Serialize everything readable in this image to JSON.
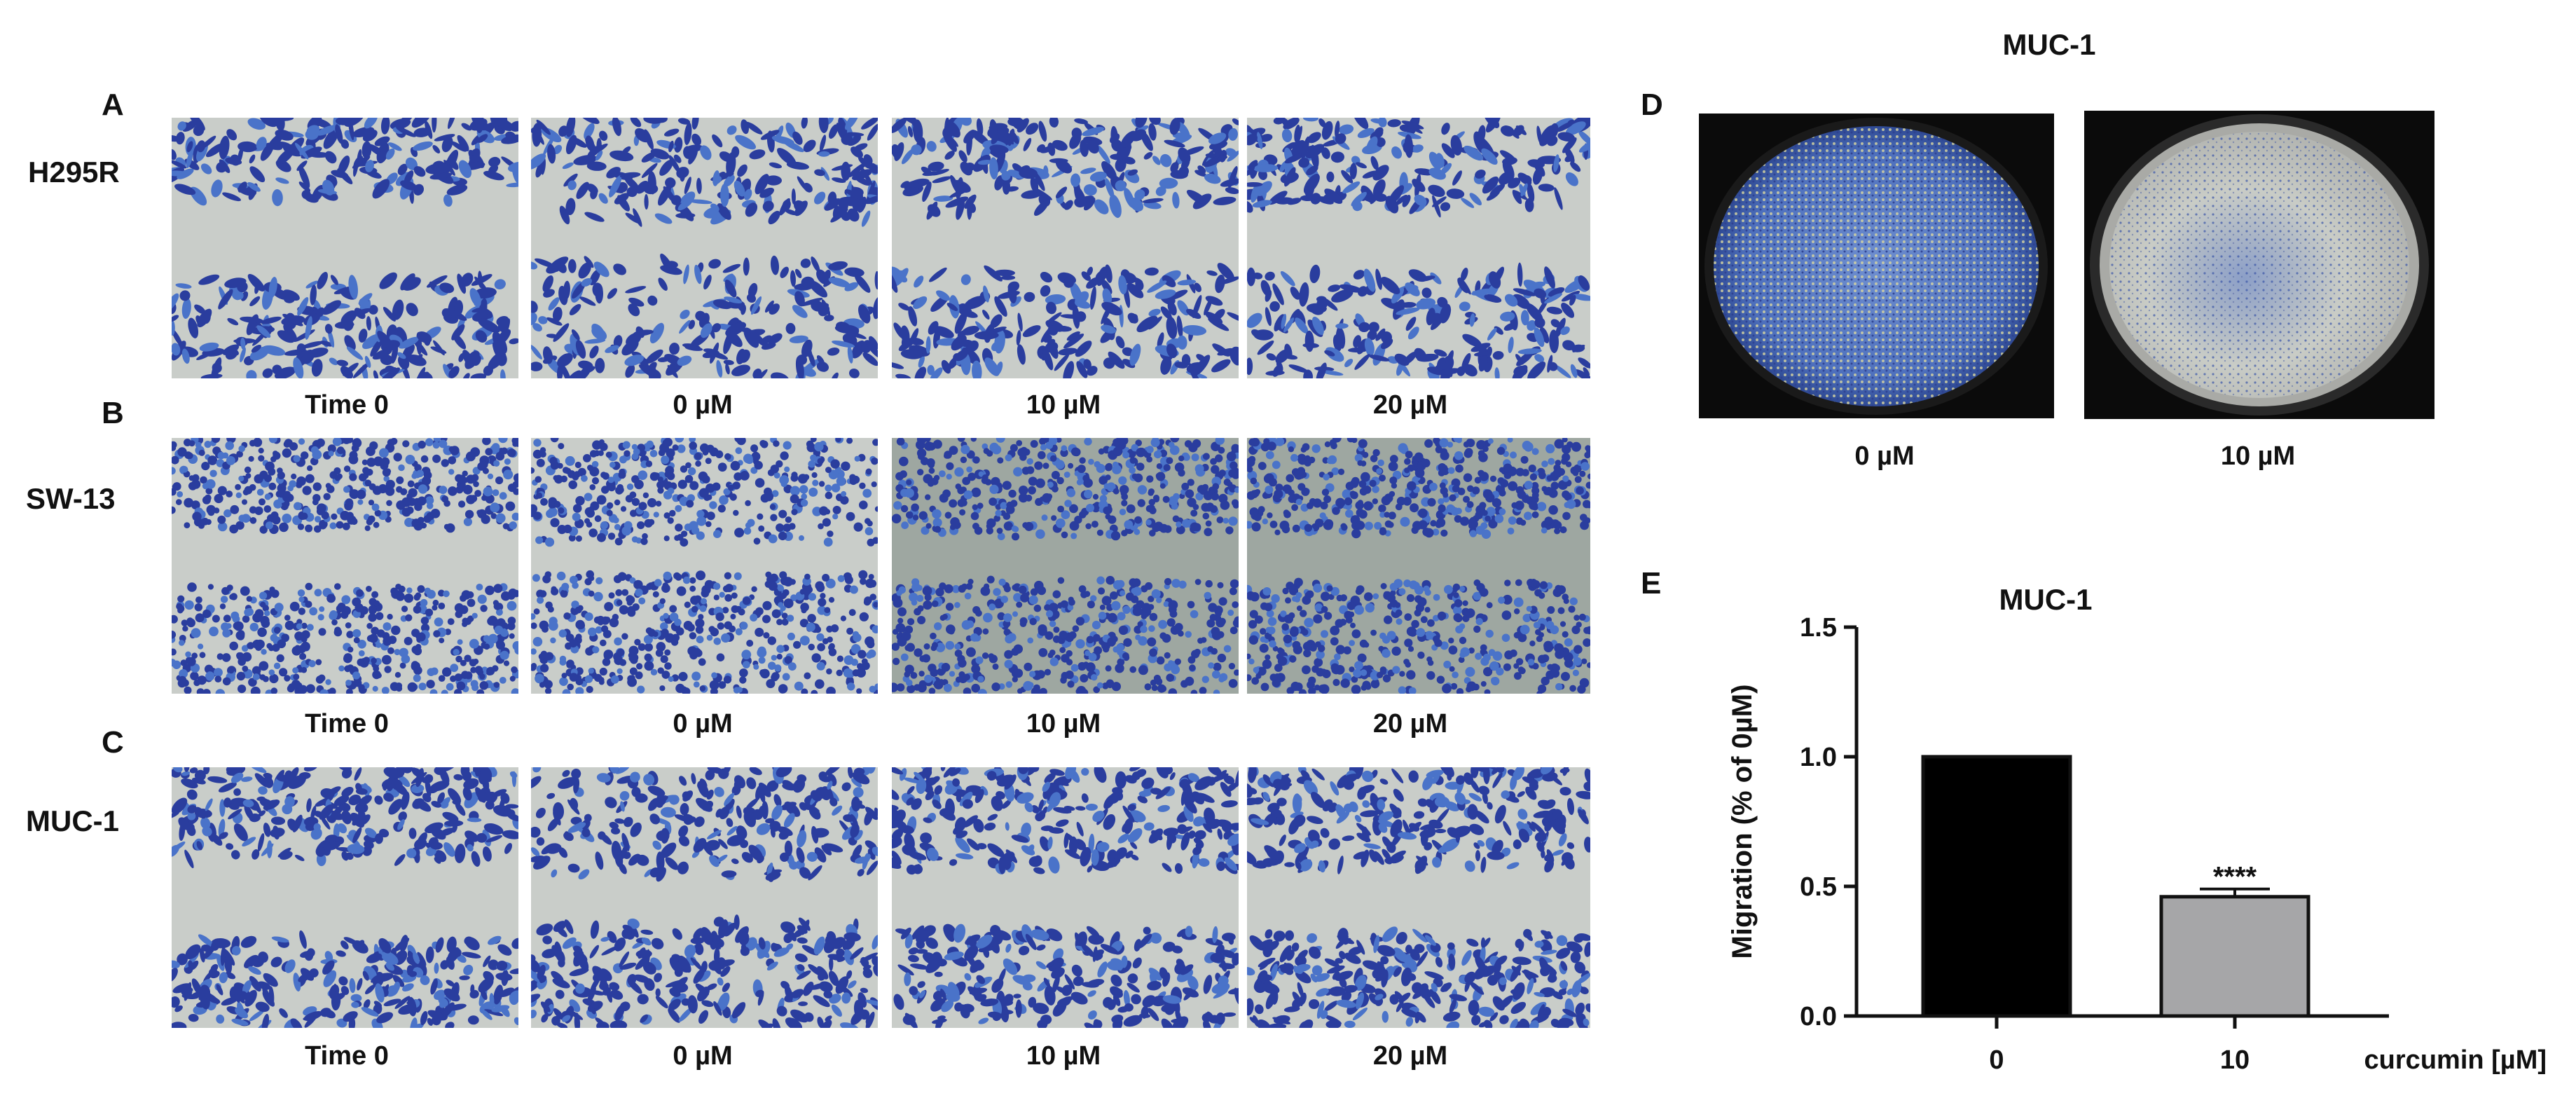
{
  "figure": {
    "panels": {
      "A": {
        "letter": "A",
        "row_label": "H295R"
      },
      "B": {
        "letter": "B",
        "row_label": "SW-13"
      },
      "C": {
        "letter": "C",
        "row_label": "MUC-1"
      },
      "D": {
        "letter": "D",
        "title": "MUC-1"
      },
      "E": {
        "letter": "E"
      }
    },
    "captions": [
      "Time 0",
      "0 µM",
      "10 µM",
      "20 µM"
    ],
    "d_captions": [
      "0 µM",
      "10 µM"
    ],
    "colors": {
      "stain": "#2a3d9e",
      "stain_light": "#4a73c9",
      "background": "#c9cdc9",
      "bar0": "#000000",
      "bar1": "#a6a6a8"
    }
  },
  "chart_data": {
    "type": "bar",
    "title": "MUC-1",
    "categories": [
      "0",
      "10"
    ],
    "values": [
      1.0,
      0.46
    ],
    "errors": [
      0,
      0.03
    ],
    "annotations": [
      "",
      "****"
    ],
    "xlabel": "curcumin [µM]",
    "ylabel": "Migration (% of 0µM)",
    "ylim": [
      0,
      1.5
    ],
    "yticks": [
      "0.0",
      "0.5",
      "1.0",
      "1.5"
    ],
    "grid": false
  }
}
